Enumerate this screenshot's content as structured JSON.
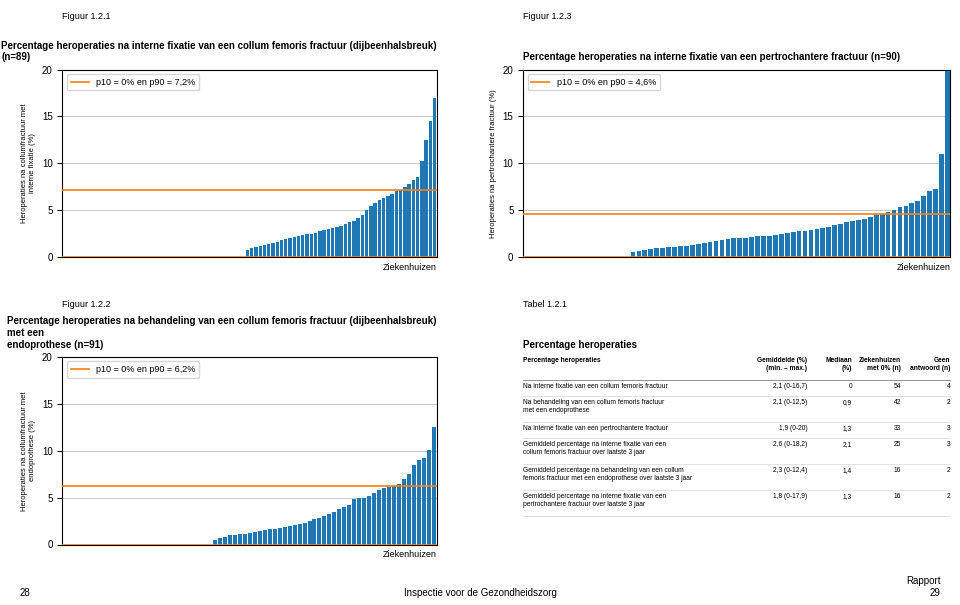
{
  "chart_data": [
    {
      "type": "bar",
      "subtitle": "Figuur 1.2.1",
      "title": "Percentage heroperaties na interne fixatie van een collum femoris fractuur (dijbeenhalsbreuk) (n=89)",
      "ylabel": "Heroperaties na collumfractuur met\ninterne fixatie (%)",
      "xlabel": "Ziekenhuizen",
      "categories": [
        null,
        null,
        null,
        null,
        null,
        null,
        null,
        null,
        null,
        null,
        null,
        null,
        null,
        null,
        null,
        null,
        null,
        null,
        null,
        null,
        null,
        null,
        null,
        null,
        null,
        null,
        null,
        null,
        null,
        null,
        null,
        null,
        null,
        null,
        null,
        null,
        null,
        null,
        null,
        null,
        null,
        null,
        null,
        null,
        null,
        null,
        null,
        null,
        null,
        null,
        null,
        null,
        null,
        null,
        null,
        null,
        null,
        null,
        null,
        null,
        null,
        null,
        null,
        null,
        null,
        null,
        null,
        null,
        null,
        null,
        null,
        null,
        null,
        null,
        null,
        null,
        null,
        null,
        null,
        null,
        null,
        null,
        null,
        null,
        null,
        null,
        null,
        null
      ],
      "values": [
        0.0,
        0.0,
        0.0,
        0.0,
        0.0,
        0.0,
        0.0,
        0.0,
        0.0,
        0.0,
        0.0,
        0.0,
        0.0,
        0.0,
        0.0,
        0.0,
        0.0,
        0.0,
        0.0,
        0.0,
        0.0,
        0.0,
        0.0,
        0.0,
        0.0,
        0.0,
        0.0,
        0.0,
        0.0,
        0.0,
        0.0,
        0.0,
        0.0,
        0.0,
        0.0,
        0.0,
        0.0,
        0.0,
        0.0,
        0.0,
        0.0,
        0.0,
        0.0,
        0.8,
        1.0,
        1.1,
        1.2,
        1.3,
        1.4,
        1.5,
        1.6,
        1.8,
        1.9,
        2.0,
        2.1,
        2.2,
        2.4,
        2.5,
        2.5,
        2.6,
        2.8,
        2.9,
        3.0,
        3.1,
        3.2,
        3.3,
        3.5,
        3.7,
        3.9,
        4.2,
        4.5,
        5.0,
        5.5,
        5.8,
        6.1,
        6.3,
        6.5,
        6.7,
        7.0,
        7.2,
        7.5,
        7.8,
        8.2,
        8.5,
        10.2,
        12.5,
        14.5,
        17.0
      ],
      "reference_lines": {
        "name": "p10 = 0% en p90 = 7,2%",
        "values": [
          0.0,
          7.2
        ]
      },
      "ylim": [
        0,
        20
      ],
      "yticks": [
        0,
        5,
        10,
        15,
        20
      ],
      "grid": true,
      "legend": "upper left",
      "tick_labels": "y"
    },
    {
      "type": "bar",
      "subtitle": "Figuur 1.2.3",
      "title": "Percentage heroperaties na interne fixatie van een pertrochantere fractuur (n=90)",
      "ylabel": "Heroperaties na pertrochantere fractuur (%)",
      "xlabel": "Ziekenhuizen",
      "categories": [
        null,
        null,
        null,
        null,
        null,
        null,
        null,
        null,
        null,
        null,
        null,
        null,
        null,
        null,
        null,
        null,
        null,
        null,
        null,
        null,
        null,
        null,
        null,
        null,
        null,
        null,
        null,
        null,
        null,
        null,
        null,
        null,
        null,
        null,
        null,
        null,
        null,
        null,
        null,
        null,
        null,
        null,
        null,
        null,
        null,
        null,
        null,
        null,
        null,
        null,
        null,
        null,
        null,
        null,
        null,
        null,
        null,
        null,
        null,
        null,
        null,
        null,
        null,
        null,
        null,
        null,
        null,
        null,
        null,
        null,
        null,
        null
      ],
      "values": [
        0.0,
        0.0,
        0.0,
        0.0,
        0.0,
        0.0,
        0.0,
        0.0,
        0.0,
        0.0,
        0.0,
        0.0,
        0.0,
        0.0,
        0.0,
        0.0,
        0.0,
        0.0,
        0.5,
        0.7,
        0.8,
        0.9,
        1.0,
        1.0,
        1.1,
        1.1,
        1.2,
        1.2,
        1.3,
        1.4,
        1.5,
        1.6,
        1.7,
        1.8,
        1.9,
        2.0,
        2.0,
        2.0,
        2.1,
        2.2,
        2.2,
        2.3,
        2.4,
        2.5,
        2.6,
        2.7,
        2.8,
        2.8,
        2.9,
        3.0,
        3.1,
        3.2,
        3.4,
        3.5,
        3.7,
        3.8,
        4.0,
        4.1,
        4.3,
        4.5,
        4.6,
        4.8,
        5.0,
        5.3,
        5.5,
        5.8,
        6.0,
        6.5,
        7.0,
        7.3,
        11.0,
        20.0
      ],
      "reference_lines": {
        "name": "p10 = 0% en p90 = 4,6%",
        "values": [
          0.0,
          4.6
        ]
      },
      "ylim": [
        0,
        20
      ],
      "yticks": [
        0,
        5,
        10,
        15,
        20
      ],
      "grid": true,
      "legend": "upper left",
      "tick_labels": "y"
    },
    {
      "type": "bar",
      "subtitle": "Figuur 1.2.2",
      "title": "Percentage heroperaties na behandeling van een collum femoris fractuur (dijbeenhalsbreuk) met een\nendoprothese (n=91)",
      "ylabel": "Heroperaties na collumfractuur met\nendoprothese (%)",
      "xlabel": "Ziekenhuizen",
      "categories": [
        null,
        null,
        null,
        null,
        null,
        null,
        null,
        null,
        null,
        null,
        null,
        null,
        null,
        null,
        null,
        null,
        null,
        null,
        null,
        null,
        null,
        null,
        null,
        null,
        null,
        null,
        null,
        null,
        null,
        null,
        null,
        null,
        null,
        null,
        null,
        null,
        null,
        null,
        null,
        null,
        null,
        null,
        null,
        null,
        null,
        null,
        null,
        null,
        null,
        null,
        null,
        null,
        null,
        null,
        null,
        null,
        null,
        null,
        null,
        null,
        null,
        null,
        null,
        null,
        null,
        null,
        null,
        null,
        null,
        null,
        null,
        null,
        null,
        null,
        null
      ],
      "values": [
        0.0,
        0.0,
        0.0,
        0.0,
        0.0,
        0.0,
        0.0,
        0.0,
        0.0,
        0.0,
        0.0,
        0.0,
        0.0,
        0.0,
        0.0,
        0.0,
        0.0,
        0.0,
        0.0,
        0.0,
        0.0,
        0.0,
        0.0,
        0.0,
        0.0,
        0.0,
        0.0,
        0.0,
        0.0,
        0.0,
        0.5,
        0.7,
        0.8,
        1.0,
        1.0,
        1.1,
        1.1,
        1.2,
        1.3,
        1.4,
        1.5,
        1.6,
        1.7,
        1.8,
        1.9,
        2.0,
        2.1,
        2.2,
        2.3,
        2.5,
        2.7,
        2.8,
        3.0,
        3.2,
        3.5,
        3.8,
        4.0,
        4.2,
        4.8,
        5.0,
        5.0,
        5.2,
        5.5,
        5.8,
        6.0,
        6.1,
        6.2,
        6.5,
        7.0,
        7.5,
        8.5,
        9.0,
        9.2,
        10.1,
        12.5
      ],
      "reference_lines": {
        "name": "p10 = 0% en p90 = 6,2%",
        "values": [
          0.0,
          6.2
        ]
      },
      "ylim": [
        0,
        20
      ],
      "yticks": [
        0,
        5,
        10,
        15,
        20
      ],
      "grid": true,
      "legend": "upper left",
      "tick_labels": "y"
    },
    {
      "type": "table",
      "subtitle": "Tabel 1.2.1",
      "title": "Percentage heroperaties",
      "columns": [
        "Percentage heroperaties",
        "Gemiddelde (%)\n(min. – max.)",
        "Mediaan\n(%)",
        "Ziekenhuizen\nmet 0% (n)",
        "Geen\nantwoord (n)"
      ],
      "rows": [
        [
          "Na interne fixatie van een collum femoris fractuur",
          "2,1 (0-16,7)",
          "0",
          "54",
          "4"
        ],
        [
          "Na behandeling van een collum femoris fractuur\nmet een endoprothese",
          "2,1 (0-12,5)",
          "0,9",
          "42",
          "2"
        ],
        [
          "Na interne fixatie van een pertrochantere fractuur",
          "1,9 (0-20)",
          "1,3",
          "33",
          "3"
        ],
        [
          "Gemiddeld percentage na interne fixatie van een\ncollum femoris fractuur over laatste 3 jaar",
          "2,6 (0-18,2)",
          "2,1",
          "25",
          "3"
        ],
        [
          "Gemiddeld percentage na behandeling van een collum\nfemoris fractuur met een endoprothese over laatste 3 jaar",
          "2,3 (0-12,4)",
          "1,4",
          "16",
          "2"
        ],
        [
          "Gemiddeld percentage na interne fixatie van een\npertrochantere fractuur over laatste 3 jaar",
          "1,8 (0-17,9)",
          "1,3",
          "16",
          "2"
        ]
      ]
    }
  ],
  "annotations": [
    "28",
    "Inspectie voor de Gezondheidszorg",
    "Rapport\n29"
  ]
}
